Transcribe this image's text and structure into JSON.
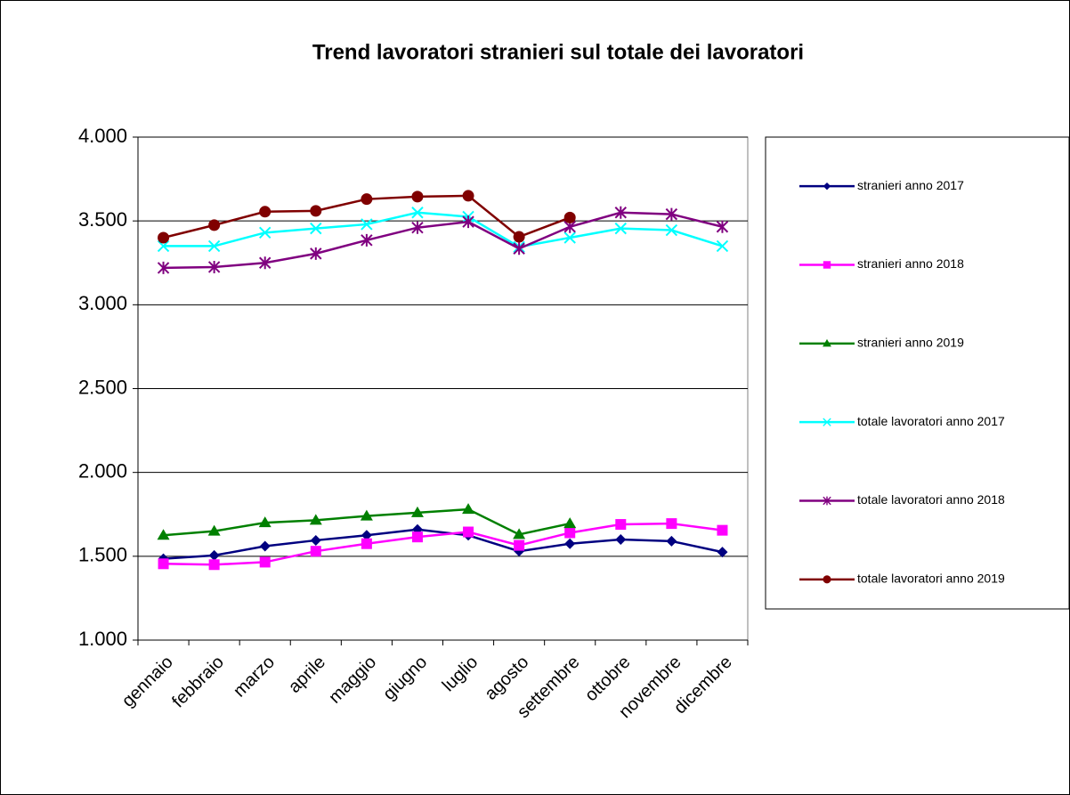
{
  "chart_data": {
    "type": "line",
    "title": "Trend lavoratori stranieri sul totale dei lavoratori",
    "categories": [
      "gennaio",
      "febbraio",
      "marzo",
      "aprile",
      "maggio",
      "giugno",
      "luglio",
      "agosto",
      "settembre",
      "ottobre",
      "novembre",
      "dicembre"
    ],
    "series": [
      {
        "name": "stranieri anno 2017",
        "color": "#000080",
        "marker": "diamond",
        "values": [
          1485,
          1505,
          1560,
          1595,
          1625,
          1660,
          1625,
          1530,
          1575,
          1600,
          1590,
          1525
        ]
      },
      {
        "name": "stranieri anno 2018",
        "color": "#ff00ff",
        "marker": "square",
        "values": [
          1455,
          1450,
          1465,
          1530,
          1575,
          1615,
          1645,
          1565,
          1640,
          1690,
          1695,
          1655
        ]
      },
      {
        "name": "stranieri anno 2019",
        "color": "#008000",
        "marker": "triangle",
        "values": [
          1625,
          1650,
          1700,
          1715,
          1740,
          1760,
          1780,
          1630,
          1695,
          null,
          null,
          null
        ]
      },
      {
        "name": "totale lavoratori anno 2017",
        "color": "#00ffff",
        "marker": "x",
        "values": [
          3350,
          3350,
          3430,
          3455,
          3480,
          3550,
          3525,
          3345,
          3400,
          3455,
          3445,
          3350
        ]
      },
      {
        "name": "totale lavoratori anno 2018",
        "color": "#800080",
        "marker": "star",
        "values": [
          3220,
          3225,
          3250,
          3305,
          3385,
          3460,
          3495,
          3335,
          3465,
          3550,
          3540,
          3465
        ]
      },
      {
        "name": "totale lavoratori anno 2019",
        "color": "#800000",
        "marker": "circle",
        "values": [
          3400,
          3475,
          3555,
          3560,
          3630,
          3645,
          3650,
          3405,
          3520,
          null,
          null,
          null
        ]
      }
    ],
    "ylim": [
      1000,
      4000
    ],
    "yticks": [
      {
        "value": 1000,
        "label": "1.000"
      },
      {
        "value": 1500,
        "label": "1.500"
      },
      {
        "value": 2000,
        "label": "2.000"
      },
      {
        "value": 2500,
        "label": "2.500"
      },
      {
        "value": 3000,
        "label": "3.000"
      },
      {
        "value": 3500,
        "label": "3.500"
      },
      {
        "value": 4000,
        "label": "4.000"
      }
    ],
    "grid": true,
    "legend": "right"
  }
}
